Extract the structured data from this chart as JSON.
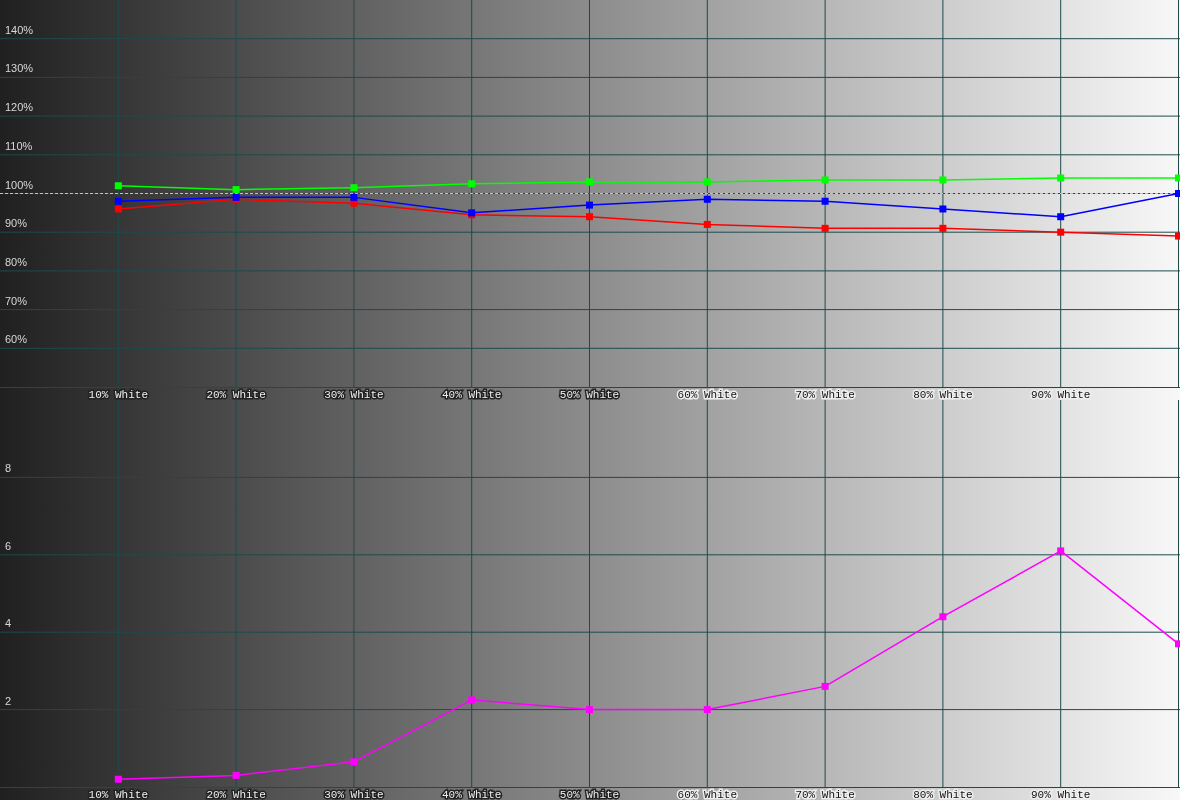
{
  "chart_data": [
    {
      "type": "line",
      "x": [
        10,
        20,
        30,
        40,
        50,
        60,
        70,
        80,
        90,
        100
      ],
      "xlim": [
        0,
        100
      ],
      "xticks": [
        {
          "value": 10,
          "label": "10% White"
        },
        {
          "value": 20,
          "label": "20% White"
        },
        {
          "value": 30,
          "label": "30% White"
        },
        {
          "value": 40,
          "label": "40% White"
        },
        {
          "value": 50,
          "label": "50% White"
        },
        {
          "value": 60,
          "label": "60% White"
        },
        {
          "value": 70,
          "label": "70% White"
        },
        {
          "value": 80,
          "label": "80% White"
        },
        {
          "value": 90,
          "label": "90% White"
        },
        {
          "value": 100,
          "label": null
        }
      ],
      "ylim": [
        50,
        150
      ],
      "yticks": [
        {
          "value": 60,
          "label": "60%"
        },
        {
          "value": 70,
          "label": "70%"
        },
        {
          "value": 80,
          "label": "80%"
        },
        {
          "value": 90,
          "label": "90%"
        },
        {
          "value": 100,
          "label": "100%"
        },
        {
          "value": 110,
          "label": "110%"
        },
        {
          "value": 120,
          "label": "120%"
        },
        {
          "value": 130,
          "label": "130%"
        },
        {
          "value": 140,
          "label": "140%"
        }
      ],
      "series": [
        {
          "color": "#ff0000",
          "values": [
            96,
            98.5,
            97.5,
            94.5,
            94,
            92,
            91,
            91,
            90,
            89
          ]
        },
        {
          "color": "#00ff00",
          "values": [
            102,
            101,
            101.5,
            102.5,
            103,
            103,
            103.5,
            103.5,
            104,
            104
          ]
        },
        {
          "color": "#0000ff",
          "values": [
            98,
            99,
            99,
            95,
            97,
            98.5,
            98,
            96,
            94,
            100
          ]
        }
      ],
      "grid": true,
      "marker": "square",
      "ref_lines": [
        {
          "axis": "y",
          "value": 100,
          "color": "#ffffff",
          "line_style": "dashed"
        }
      ]
    },
    {
      "type": "line",
      "x": [
        10,
        20,
        30,
        40,
        50,
        60,
        70,
        80,
        90,
        100
      ],
      "xlim": [
        0,
        100
      ],
      "xticks": [
        {
          "value": 10,
          "label": "10% White"
        },
        {
          "value": 20,
          "label": "20% White"
        },
        {
          "value": 30,
          "label": "30% White"
        },
        {
          "value": 40,
          "label": "40% White"
        },
        {
          "value": 50,
          "label": "50% White"
        },
        {
          "value": 60,
          "label": "60% White"
        },
        {
          "value": 70,
          "label": "70% White"
        },
        {
          "value": 80,
          "label": "80% White"
        },
        {
          "value": 90,
          "label": "90% White"
        },
        {
          "value": 100,
          "label": null
        }
      ],
      "ylim": [
        0,
        10
      ],
      "yticks": [
        2,
        4,
        6,
        8
      ],
      "series": [
        {
          "color": "#ff00ff",
          "values": [
            0.2,
            0.3,
            0.65,
            2.25,
            2,
            2,
            2.6,
            4.4,
            6.1,
            3.7
          ]
        }
      ],
      "grid": true,
      "marker": "square"
    }
  ]
}
